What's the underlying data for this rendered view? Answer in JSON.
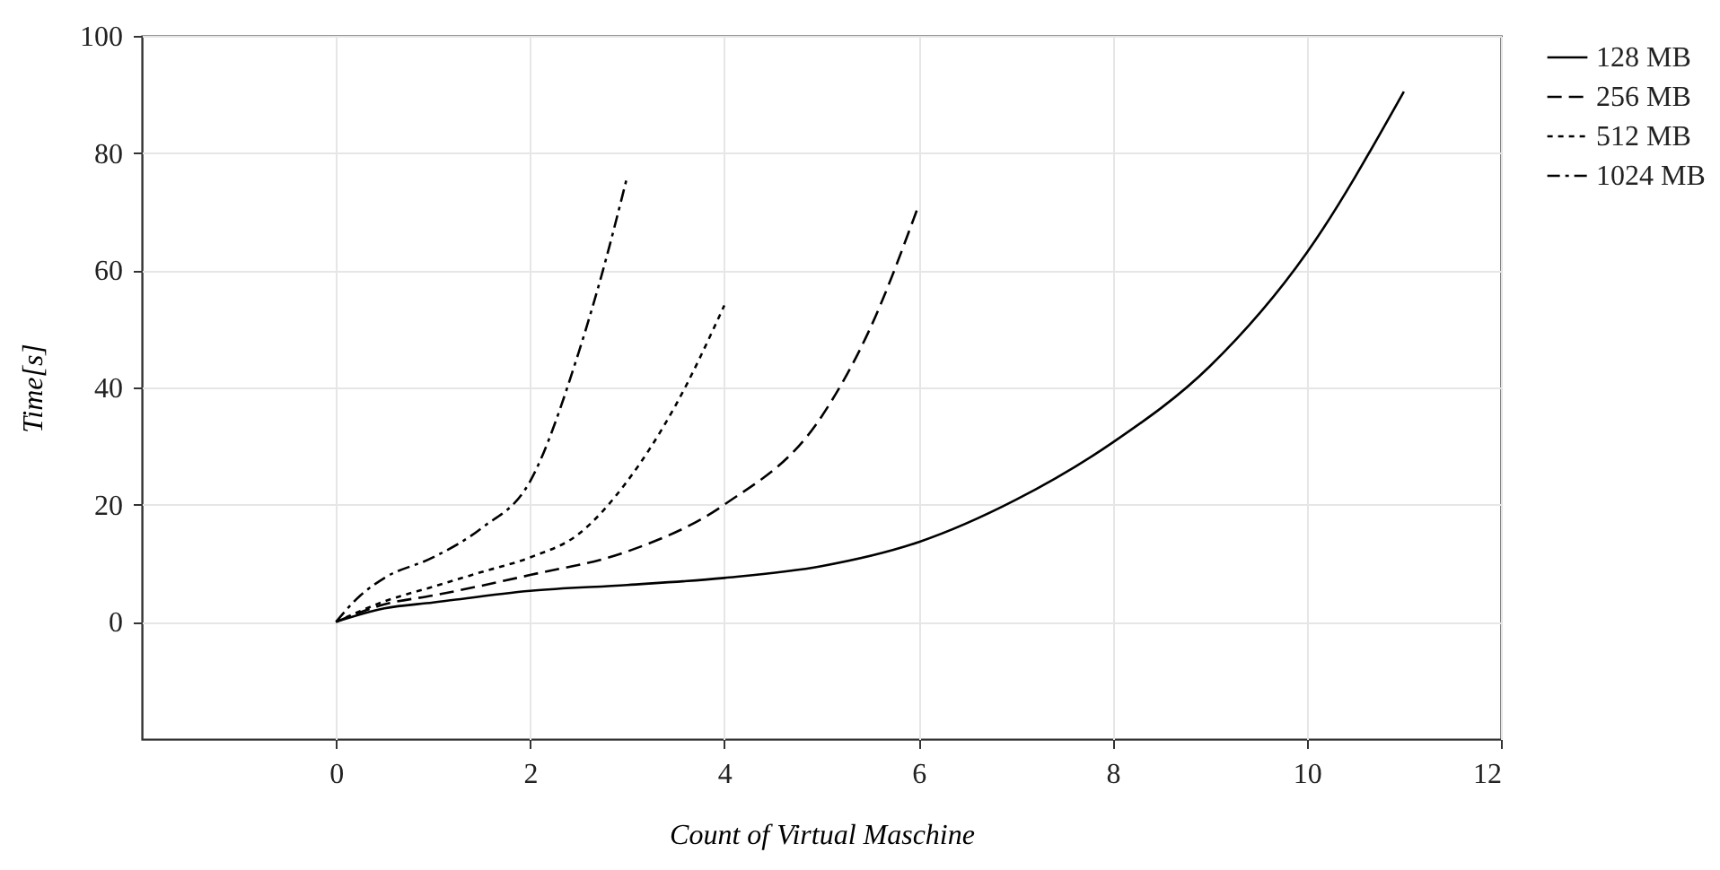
{
  "chart_data": {
    "type": "line",
    "xlabel": "Count of Virtual Maschine",
    "ylabel": "Time[s]",
    "xlim": [
      -2,
      12
    ],
    "xticks": [
      0,
      2,
      4,
      6,
      8,
      10,
      12
    ],
    "ylim": [
      -20,
      100
    ],
    "yticks": [
      0,
      20,
      40,
      60,
      80,
      100
    ],
    "grid": true,
    "legend": "right",
    "marker": "none",
    "series": [
      {
        "name": "128 MB",
        "color": "#000000",
        "line_style": "solid",
        "x": [
          0,
          0.5,
          1,
          2,
          3,
          4,
          5,
          6,
          7,
          8,
          9,
          10,
          11
        ],
        "values": [
          0,
          2.3,
          3.3,
          5.3,
          6.3,
          7.5,
          9.5,
          13.6,
          20.8,
          30.6,
          43.6,
          63,
          90.5
        ]
      },
      {
        "name": "256 MB",
        "color": "#000000",
        "line_style": "dashed",
        "x": [
          0,
          0.5,
          1,
          2,
          3,
          4,
          5,
          5.5,
          6
        ],
        "values": [
          0,
          3,
          4.5,
          8,
          12,
          20,
          35,
          50,
          71
        ]
      },
      {
        "name": "512 MB",
        "color": "#000000",
        "line_style": "dotted",
        "x": [
          0,
          0.5,
          1,
          1.5,
          2,
          2.5,
          3,
          3.5,
          4
        ],
        "values": [
          0,
          3.5,
          6,
          8.5,
          11,
          15,
          24,
          37,
          54
        ]
      },
      {
        "name": "1024 MB",
        "color": "#000000",
        "line_style": "dashdot",
        "x": [
          0,
          0.25,
          0.5,
          1,
          1.5,
          2,
          2.5,
          2.75,
          3
        ],
        "values": [
          0,
          4.5,
          7.5,
          11,
          16,
          24,
          46,
          60,
          76
        ]
      }
    ]
  }
}
